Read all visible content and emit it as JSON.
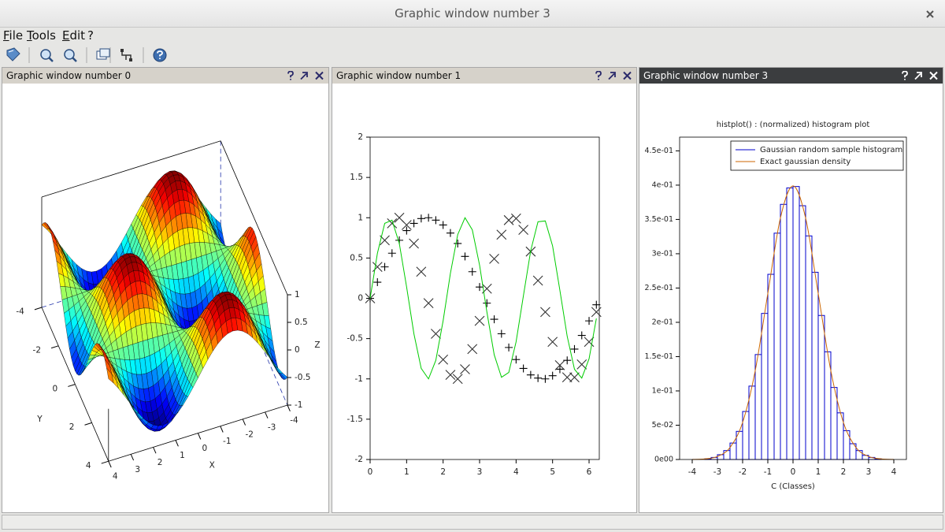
{
  "window": {
    "title": "Graphic window number 3"
  },
  "menu": [
    "File",
    "Tools",
    "Edit",
    "?"
  ],
  "panels": [
    {
      "title": "Graphic window number 0"
    },
    {
      "title": "Graphic window number 1"
    },
    {
      "title": "Graphic window number 3"
    }
  ],
  "chart_data": [
    {
      "type": "surface",
      "xlabel": "X",
      "ylabel": "Y",
      "zlabel": "Z",
      "xlim": [
        -4,
        4
      ],
      "ylim": [
        -4,
        4
      ],
      "zlim": [
        -1,
        1
      ],
      "xticks": [
        -4,
        -3,
        -2,
        -1,
        0,
        1,
        2,
        3,
        4
      ],
      "yticks": [
        -4,
        -2,
        0,
        2,
        4
      ],
      "zticks": [
        -1,
        -0.5,
        0,
        0.5,
        1
      ],
      "colormap": "jet"
    },
    {
      "type": "line",
      "x": [
        0,
        0.2,
        0.4,
        0.6,
        0.8,
        1.0,
        1.2,
        1.4,
        1.6,
        1.8,
        2.0,
        2.2,
        2.4,
        2.6,
        2.8,
        3.0,
        3.2,
        3.4,
        3.6,
        3.8,
        4.0,
        4.2,
        4.4,
        4.6,
        4.8,
        5.0,
        5.2,
        5.4,
        5.6,
        5.8,
        6.0,
        6.2
      ],
      "series": [
        {
          "style": "plus",
          "color": "#000000",
          "values": [
            0,
            0.2,
            0.39,
            0.56,
            0.72,
            0.84,
            0.93,
            0.99,
            1.0,
            0.97,
            0.91,
            0.81,
            0.68,
            0.52,
            0.33,
            0.14,
            -0.06,
            -0.26,
            -0.44,
            -0.61,
            -0.76,
            -0.87,
            -0.95,
            -0.99,
            -1.0,
            -0.96,
            -0.88,
            -0.77,
            -0.63,
            -0.46,
            -0.28,
            -0.08
          ]
        },
        {
          "style": "cross",
          "color": "#333333",
          "values": [
            0,
            0.39,
            0.72,
            0.93,
            1.0,
            0.91,
            0.68,
            0.33,
            -0.06,
            -0.44,
            -0.76,
            -0.95,
            -1.0,
            -0.88,
            -0.63,
            -0.28,
            0.12,
            0.49,
            0.79,
            0.97,
            0.99,
            0.85,
            0.58,
            0.22,
            -0.17,
            -0.54,
            -0.83,
            -0.98,
            -0.98,
            -0.82,
            -0.54,
            -0.17
          ]
        },
        {
          "style": "line",
          "color": "#00cc00",
          "values": [
            0,
            0.56,
            0.93,
            0.97,
            0.68,
            0.14,
            -0.44,
            -0.87,
            -1.0,
            -0.77,
            -0.28,
            0.31,
            0.79,
            1.0,
            0.85,
            0.41,
            -0.17,
            -0.7,
            -0.98,
            -0.92,
            -0.54,
            0.03,
            0.59,
            0.95,
            0.96,
            0.65,
            0.1,
            -0.47,
            -0.88,
            -0.99,
            -0.75,
            -0.25
          ]
        }
      ],
      "xlim": [
        0,
        6.28
      ],
      "ylim": [
        -2,
        2
      ],
      "xticks": [
        0,
        1,
        2,
        3,
        4,
        5,
        6
      ],
      "yticks": [
        -2,
        -1.5,
        -1,
        -0.5,
        0,
        0.5,
        1,
        1.5,
        2
      ]
    },
    {
      "type": "histogram",
      "title": "histplot() : (normalized) histogram plot",
      "xlabel": "C (Classes)",
      "legend": "upper right",
      "series": [
        {
          "name": "Gaussian random sample histogram",
          "color": "#0000cc",
          "bins": [
            -3.5,
            -3.25,
            -3,
            -2.75,
            -2.5,
            -2.25,
            -2,
            -1.75,
            -1.5,
            -1.25,
            -1,
            -0.75,
            -0.5,
            -0.25,
            0,
            0.25,
            0.5,
            0.75,
            1,
            1.25,
            1.5,
            1.75,
            2,
            2.25,
            2.5,
            2.75,
            3,
            3.25,
            3.5
          ],
          "values": [
            0.001,
            0.003,
            0.007,
            0.013,
            0.024,
            0.041,
            0.07,
            0.107,
            0.153,
            0.213,
            0.27,
            0.33,
            0.372,
            0.396,
            0.398,
            0.37,
            0.326,
            0.273,
            0.21,
            0.157,
            0.105,
            0.068,
            0.042,
            0.023,
            0.013,
            0.006,
            0.003,
            0.001
          ]
        },
        {
          "name": "Exact gaussian density",
          "color": "#cc6600",
          "x": [
            -4,
            -3.5,
            -3,
            -2.5,
            -2,
            -1.5,
            -1,
            -0.5,
            0,
            0.5,
            1,
            1.5,
            2,
            2.5,
            3,
            3.5,
            4
          ],
          "values": [
            0.0001,
            0.0009,
            0.0044,
            0.0175,
            0.054,
            0.1295,
            0.242,
            0.3521,
            0.3989,
            0.3521,
            0.242,
            0.1295,
            0.054,
            0.0175,
            0.0044,
            0.0009,
            0.0001
          ]
        }
      ],
      "xlim": [
        -4.5,
        4.5
      ],
      "ylim": [
        0,
        0.47
      ],
      "xticks": [
        -4,
        -3,
        -2,
        -1,
        0,
        1,
        2,
        3,
        4
      ],
      "yticks": [
        {
          "value": 0,
          "label": "0e00"
        },
        {
          "value": 0.05,
          "label": "5e-02"
        },
        {
          "value": 0.1,
          "label": "1e-01"
        },
        {
          "value": 0.15,
          "label": "1.5e-01"
        },
        {
          "value": 0.2,
          "label": "2e-01"
        },
        {
          "value": 0.25,
          "label": "2.5e-01"
        },
        {
          "value": 0.3,
          "label": "3e-01"
        },
        {
          "value": 0.35,
          "label": "3.5e-01"
        },
        {
          "value": 0.4,
          "label": "4e-01"
        },
        {
          "value": 0.45,
          "label": "4.5e-01"
        }
      ]
    }
  ]
}
